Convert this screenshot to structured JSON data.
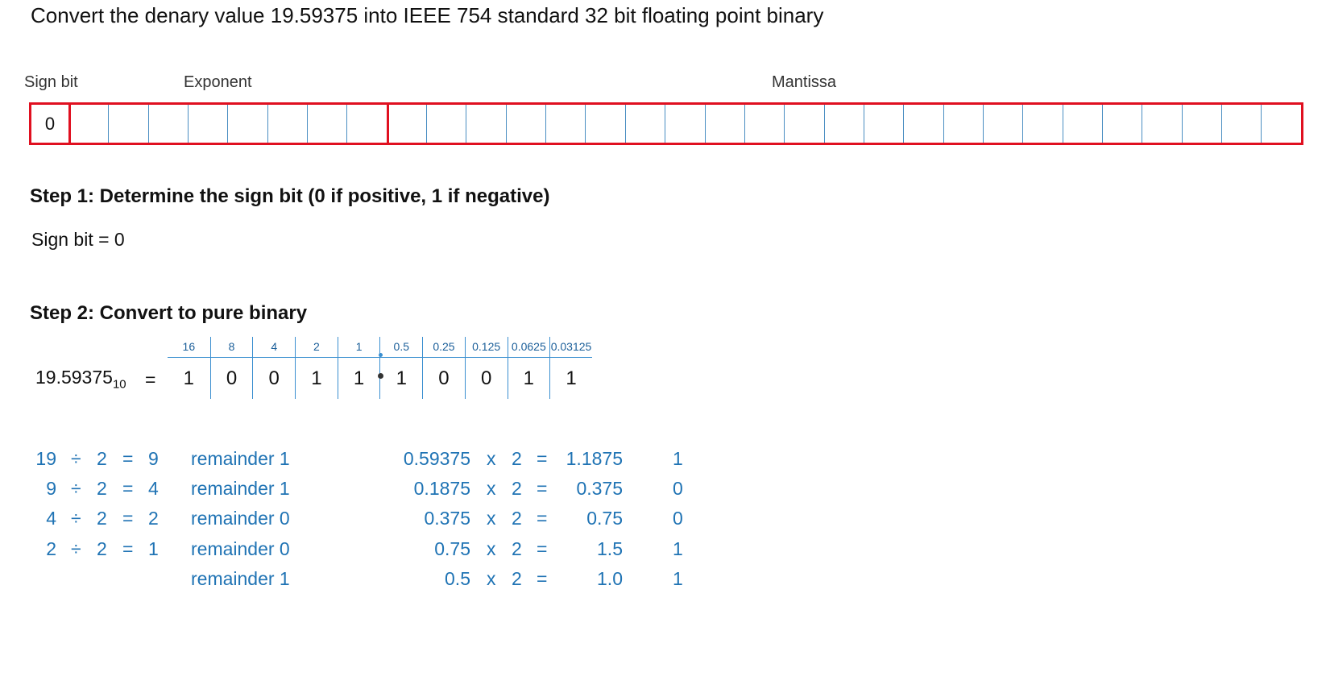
{
  "title": "Convert the denary value 19.59375  into IEEE 754 standard 32 bit floating point binary",
  "labels": {
    "sign": "Sign bit",
    "exponent": "Exponent",
    "mantissa": "Mantissa"
  },
  "register": {
    "sign_value": "0",
    "exponent_bits": 8,
    "mantissa_bits": 23
  },
  "step1": {
    "heading": "Step 1: Determine the sign bit (0 if positive, 1 if negative)",
    "result": "Sign bit  =  0"
  },
  "step2": {
    "heading": "Step 2: Convert to pure binary",
    "denary": "19.59375",
    "base": "10",
    "equals": "=",
    "place_values": [
      "16",
      "8",
      "4",
      "2",
      "1",
      "0.5",
      "0.25",
      "0.125",
      "0.0625",
      "0.03125"
    ],
    "bits": [
      "1",
      "0",
      "0",
      "1",
      "1",
      "1",
      "0",
      "0",
      "1",
      "1"
    ]
  },
  "integer_division": [
    {
      "dividend": "19",
      "op": "÷",
      "divisor": "2",
      "eq": "=",
      "quotient": "9",
      "remainder": "remainder  1"
    },
    {
      "dividend": "9",
      "op": "÷",
      "divisor": "2",
      "eq": "=",
      "quotient": "4",
      "remainder": "remainder  1"
    },
    {
      "dividend": "4",
      "op": "÷",
      "divisor": "2",
      "eq": "=",
      "quotient": "2",
      "remainder": "remainder  0"
    },
    {
      "dividend": "2",
      "op": "÷",
      "divisor": "2",
      "eq": "=",
      "quotient": "1",
      "remainder": "remainder  0"
    },
    {
      "dividend": "",
      "op": "",
      "divisor": "",
      "eq": "",
      "quotient": "",
      "remainder": "remainder  1"
    }
  ],
  "fraction_multiplication": [
    {
      "value": "0.59375",
      "op": "x",
      "factor": "2",
      "eq": "=",
      "result": "1.1875",
      "bit": "1"
    },
    {
      "value": "0.1875",
      "op": "x",
      "factor": "2",
      "eq": "=",
      "result": "0.375",
      "bit": "0"
    },
    {
      "value": "0.375",
      "op": "x",
      "factor": "2",
      "eq": "=",
      "result": "0.75",
      "bit": "0"
    },
    {
      "value": "0.75",
      "op": "x",
      "factor": "2",
      "eq": "=",
      "result": "1.5",
      "bit": "1"
    },
    {
      "value": "0.5",
      "op": "x",
      "factor": "2",
      "eq": "=",
      "result": "1.0",
      "bit": "1"
    }
  ],
  "colors": {
    "register_border": "#e01020",
    "cell_divider": "#4a8ec2",
    "working_text": "#1f73b4"
  }
}
